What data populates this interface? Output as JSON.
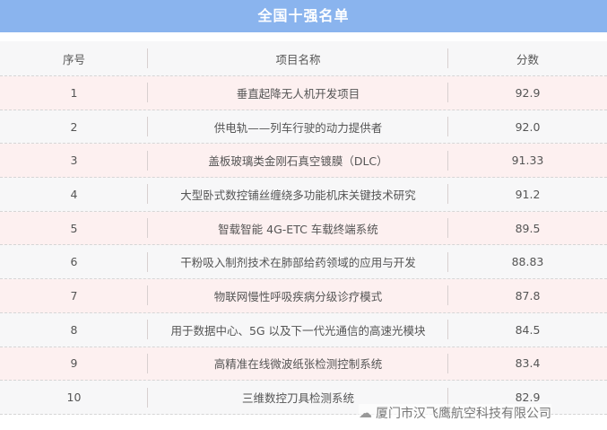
{
  "title": "全国十强名单",
  "headers": [
    "序号",
    "项目名称",
    "分数"
  ],
  "rows": [
    {
      "rank": "1",
      "name": "垂直起降无人机开发项目",
      "score": "92.9"
    },
    {
      "rank": "2",
      "name": "供电轨——列车行驶的动力提供者",
      "score": "92.0"
    },
    {
      "rank": "3",
      "name": "盖板玻璃类金刚石真空镀膜（DLC）",
      "score": "91.33"
    },
    {
      "rank": "4",
      "name": "大型卧式数控铺丝缠绕多功能机床关键技术研究",
      "score": "91.2"
    },
    {
      "rank": "5",
      "name": "智载智能 4G-ETC 车载终端系统",
      "score": "89.5"
    },
    {
      "rank": "6",
      "name": "干粉吸入制剂技术在肺部给药领域的应用与开发",
      "score": "88.83"
    },
    {
      "rank": "7",
      "name": "物联网慢性呼吸疾病分级诊疗模式",
      "score": "87.8"
    },
    {
      "rank": "8",
      "name": "用于数据中心、5G 以及下一代光通信的高速光模块",
      "score": "84.5"
    },
    {
      "rank": "9",
      "name": "高精准在线微波纸张检测控制系统",
      "score": "83.4"
    },
    {
      "rank": "10",
      "name": "三维数控刀具检测系统",
      "score": "82.9"
    }
  ],
  "watermark": {
    "icon": "wechat-icon",
    "text": "厦门市汉飞鹰航空科技有限公司"
  },
  "colors": {
    "title_bar": "#8ab4ee",
    "row_pink": "#fdf0f0",
    "row_gray": "#f7f7f8"
  }
}
